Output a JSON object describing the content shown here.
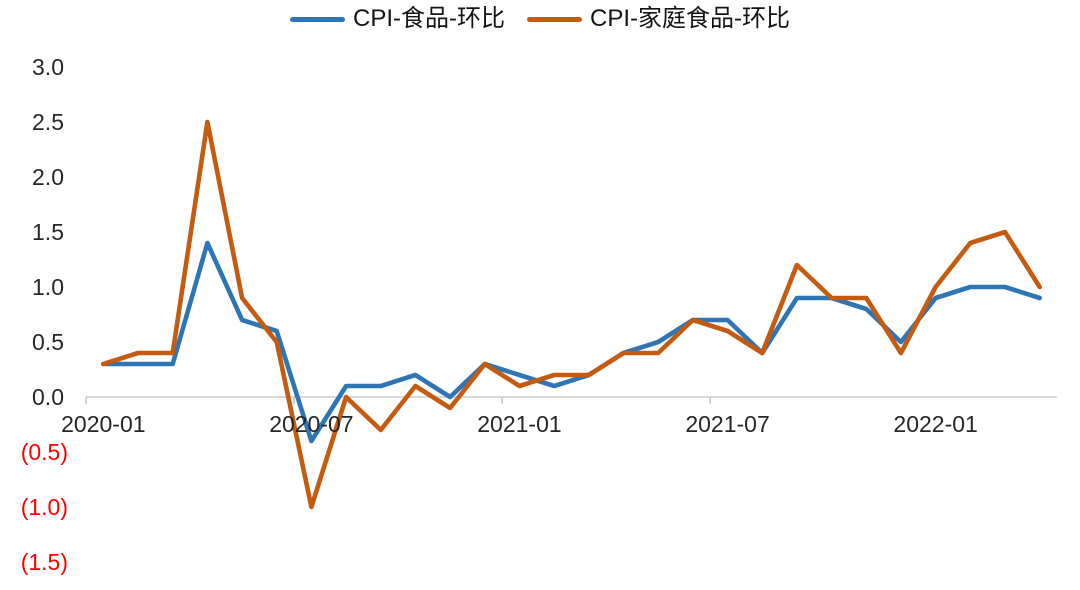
{
  "legend": {
    "items": [
      {
        "id": "cpi-food",
        "label": "CPI-食品-环比",
        "color": "#2E75B6"
      },
      {
        "id": "cpi-food-at-home",
        "label": "CPI-家庭食品-环比",
        "color": "#C55A11"
      }
    ]
  },
  "chart_data": {
    "type": "line",
    "title": "",
    "xlabel": "",
    "ylabel": "",
    "x": [
      "2020-01",
      "2020-02",
      "2020-03",
      "2020-04",
      "2020-05",
      "2020-06",
      "2020-07",
      "2020-08",
      "2020-09",
      "2020-10",
      "2020-11",
      "2020-12",
      "2021-01",
      "2021-02",
      "2021-03",
      "2021-04",
      "2021-05",
      "2021-06",
      "2021-07",
      "2021-08",
      "2021-09",
      "2021-10",
      "2021-11",
      "2021-12",
      "2022-01",
      "2022-02",
      "2022-03",
      "2022-04"
    ],
    "series": [
      {
        "name": "CPI-食品-环比",
        "color": "#2E75B6",
        "values": [
          0.3,
          0.3,
          0.3,
          1.4,
          0.7,
          0.6,
          -0.4,
          0.1,
          0.1,
          0.2,
          0.0,
          0.3,
          0.2,
          0.1,
          0.2,
          0.4,
          0.5,
          0.7,
          0.7,
          0.4,
          0.9,
          0.9,
          0.8,
          0.5,
          0.9,
          1.0,
          1.0,
          0.9
        ]
      },
      {
        "name": "CPI-家庭食品-环比",
        "color": "#C55A11",
        "values": [
          0.3,
          0.4,
          0.4,
          2.5,
          0.9,
          0.5,
          -1.0,
          0.0,
          -0.3,
          0.1,
          -0.1,
          0.3,
          0.1,
          0.2,
          0.2,
          0.4,
          0.4,
          0.7,
          0.6,
          0.4,
          1.2,
          0.9,
          0.9,
          0.4,
          1.0,
          1.4,
          1.5,
          1.0
        ]
      }
    ],
    "x_tick_labels": [
      "2020-01",
      "2020-07",
      "2021-01",
      "2021-07",
      "2022-01"
    ],
    "x_tick_every": 6,
    "y_ticks": [
      {
        "v": 3.0,
        "label": "3.0"
      },
      {
        "v": 2.5,
        "label": "2.5"
      },
      {
        "v": 2.0,
        "label": "2.0"
      },
      {
        "v": 1.5,
        "label": "1.5"
      },
      {
        "v": 1.0,
        "label": "1.0"
      },
      {
        "v": 0.5,
        "label": "0.5"
      },
      {
        "v": 0.0,
        "label": "0.0"
      },
      {
        "v": -0.5,
        "label": "(0.5)"
      },
      {
        "v": -1.0,
        "label": "(1.0)"
      },
      {
        "v": -1.5,
        "label": "(1.5)"
      }
    ],
    "ylim": [
      -1.5,
      3.0
    ],
    "grid": false,
    "legend_position": "top",
    "colors": {
      "axis": "#D9D9D9",
      "tick": "#C9C9C9",
      "label_text": "#262626",
      "negative_label_text": "#FF0000"
    }
  }
}
